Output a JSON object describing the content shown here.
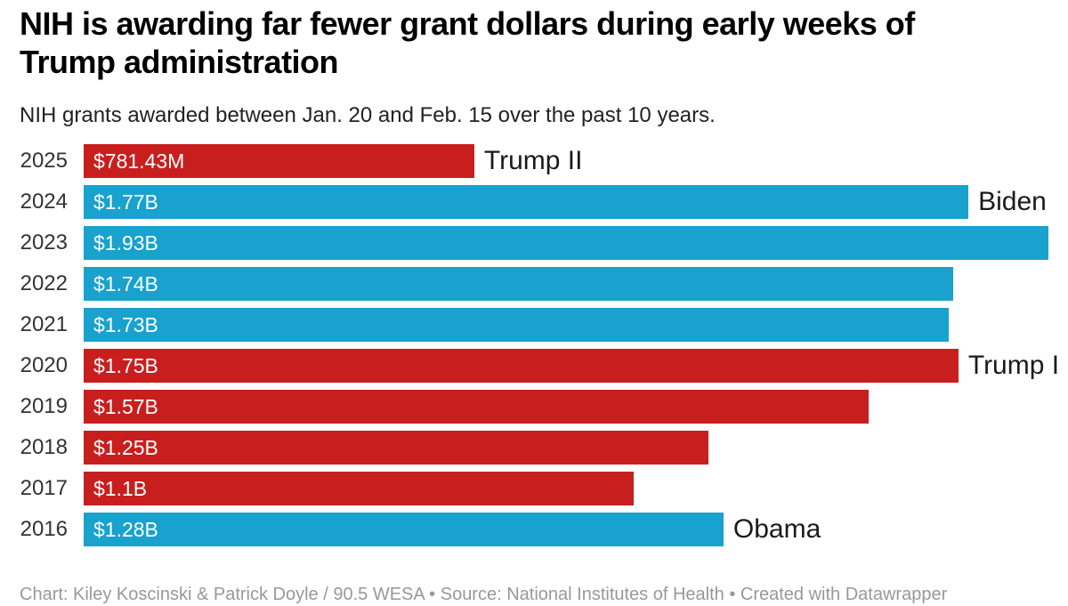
{
  "header": {
    "title": "NIH is awarding far fewer grant dollars during early weeks of Trump administration",
    "title_lines": [
      "NIH is awarding far fewer grant dollars during early weeks of",
      "Trump administration"
    ],
    "subtitle": "NIH grants awarded between Jan. 20 and Feb. 15 over the past 10 years."
  },
  "chart_data": {
    "type": "bar",
    "orientation": "horizontal",
    "title": "NIH is awarding far fewer grant dollars during early weeks of Trump administration",
    "subtitle": "NIH grants awarded between Jan. 20 and Feb. 15 over the past 10 years.",
    "categories": [
      "2025",
      "2024",
      "2023",
      "2022",
      "2021",
      "2020",
      "2019",
      "2018",
      "2017",
      "2016"
    ],
    "values_musd": [
      781.43,
      1770,
      1930,
      1740,
      1730,
      1750,
      1570,
      1250,
      1100,
      1280
    ],
    "value_labels": [
      "$781.43M",
      "$1.77B",
      "$1.93B",
      "$1.74B",
      "$1.73B",
      "$1.75B",
      "$1.57B",
      "$1.25B",
      "$1.1B",
      "$1.28B"
    ],
    "bar_colors": [
      "red",
      "blue",
      "blue",
      "blue",
      "blue",
      "red",
      "red",
      "red",
      "red",
      "blue"
    ],
    "annotations": [
      "Trump II",
      "Biden",
      "",
      "",
      "",
      "Trump I",
      "",
      "",
      "",
      "Obama"
    ],
    "colors": {
      "red": "#c81f1e",
      "blue": "#18a2cd"
    },
    "xlim_musd": [
      0,
      1930
    ],
    "grid": false,
    "legend": "none"
  },
  "footer": {
    "text": "Chart: Kiley Koscinski & Patrick Doyle / 90.5 WESA • Source: National Institutes of Health • Created with Datawrapper"
  }
}
